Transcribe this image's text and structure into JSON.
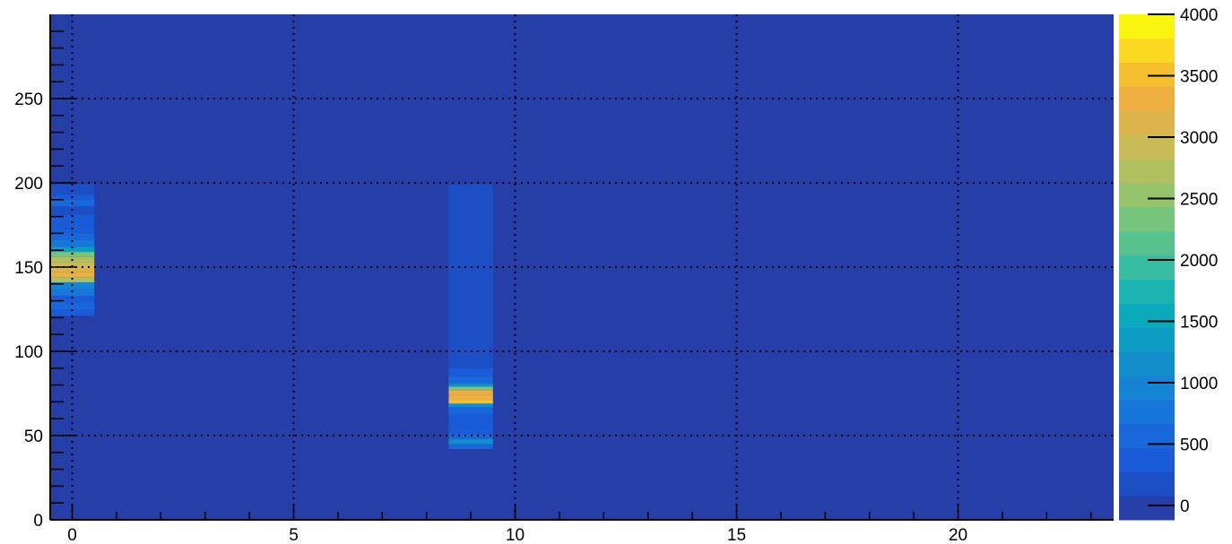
{
  "chart_data": {
    "type": "heatmap",
    "title": "",
    "xlabel": "",
    "ylabel": "",
    "xlim": [
      -0.5,
      23.5
    ],
    "ylim": [
      0,
      300
    ],
    "xticks": [
      0,
      5,
      10,
      15,
      20
    ],
    "yticks": [
      0,
      50,
      100,
      150,
      200,
      250
    ],
    "grid": true,
    "background_value": 0,
    "colorbar": {
      "min": 0,
      "max": 4000,
      "ticks": [
        0,
        500,
        1000,
        1500,
        2000,
        2500,
        3000,
        3500,
        4000
      ],
      "levels": 20,
      "palette": [
        "#253EA8",
        "#1C4FC6",
        "#1A5CD8",
        "#1868DC",
        "#1776D9",
        "#1684D4",
        "#128FCB",
        "#0D9CC3",
        "#0BA9BC",
        "#1CB4B0",
        "#38BDA2",
        "#58C28F",
        "#77C47D",
        "#96C46C",
        "#B1C05E",
        "#C9BB55",
        "#DDB44B",
        "#EEAF41",
        "#F6BF30",
        "#FBD923",
        "#F9F50E"
      ]
    },
    "cells": [
      {
        "x": 0,
        "y0": 121,
        "y1": 125,
        "value": 500
      },
      {
        "x": 0,
        "y0": 125,
        "y1": 129,
        "value": 750
      },
      {
        "x": 0,
        "y0": 129,
        "y1": 133,
        "value": 550
      },
      {
        "x": 0,
        "y0": 133,
        "y1": 137,
        "value": 850
      },
      {
        "x": 0,
        "y0": 137,
        "y1": 141,
        "value": 1150
      },
      {
        "x": 0,
        "y0": 141,
        "y1": 144,
        "value": 2900
      },
      {
        "x": 0,
        "y0": 144,
        "y1": 147,
        "value": 3400
      },
      {
        "x": 0,
        "y0": 147,
        "y1": 150,
        "value": 3300
      },
      {
        "x": 0,
        "y0": 150,
        "y1": 153,
        "value": 3000
      },
      {
        "x": 0,
        "y0": 153,
        "y1": 156,
        "value": 2800
      },
      {
        "x": 0,
        "y0": 156,
        "y1": 159,
        "value": 2500
      },
      {
        "x": 0,
        "y0": 159,
        "y1": 162,
        "value": 1400
      },
      {
        "x": 0,
        "y0": 162,
        "y1": 166,
        "value": 800
      },
      {
        "x": 0,
        "y0": 166,
        "y1": 170,
        "value": 600
      },
      {
        "x": 0,
        "y0": 170,
        "y1": 176,
        "value": 400
      },
      {
        "x": 0,
        "y0": 176,
        "y1": 181,
        "value": 500
      },
      {
        "x": 0,
        "y0": 181,
        "y1": 186,
        "value": 350
      },
      {
        "x": 0,
        "y0": 186,
        "y1": 190,
        "value": 700
      },
      {
        "x": 0,
        "y0": 190,
        "y1": 193,
        "value": 450
      },
      {
        "x": 0,
        "y0": 193,
        "y1": 199,
        "value": 300
      },
      {
        "x": 9,
        "y0": 42,
        "y1": 45,
        "value": 600
      },
      {
        "x": 9,
        "y0": 45,
        "y1": 48,
        "value": 1200
      },
      {
        "x": 9,
        "y0": 48,
        "y1": 51,
        "value": 750
      },
      {
        "x": 9,
        "y0": 51,
        "y1": 57,
        "value": 500
      },
      {
        "x": 9,
        "y0": 57,
        "y1": 63,
        "value": 450
      },
      {
        "x": 9,
        "y0": 63,
        "y1": 67,
        "value": 600
      },
      {
        "x": 9,
        "y0": 67,
        "y1": 69,
        "value": 1200
      },
      {
        "x": 9,
        "y0": 69,
        "y1": 71,
        "value": 3600
      },
      {
        "x": 9,
        "y0": 71,
        "y1": 74,
        "value": 3400
      },
      {
        "x": 9,
        "y0": 74,
        "y1": 77,
        "value": 3500
      },
      {
        "x": 9,
        "y0": 77,
        "y1": 79,
        "value": 2400
      },
      {
        "x": 9,
        "y0": 79,
        "y1": 81,
        "value": 1200
      },
      {
        "x": 9,
        "y0": 81,
        "y1": 85,
        "value": 700
      },
      {
        "x": 9,
        "y0": 85,
        "y1": 90,
        "value": 450
      },
      {
        "x": 9,
        "y0": 90,
        "y1": 96,
        "value": 350
      },
      {
        "x": 9,
        "y0": 96,
        "y1": 199,
        "value": 250
      }
    ]
  }
}
